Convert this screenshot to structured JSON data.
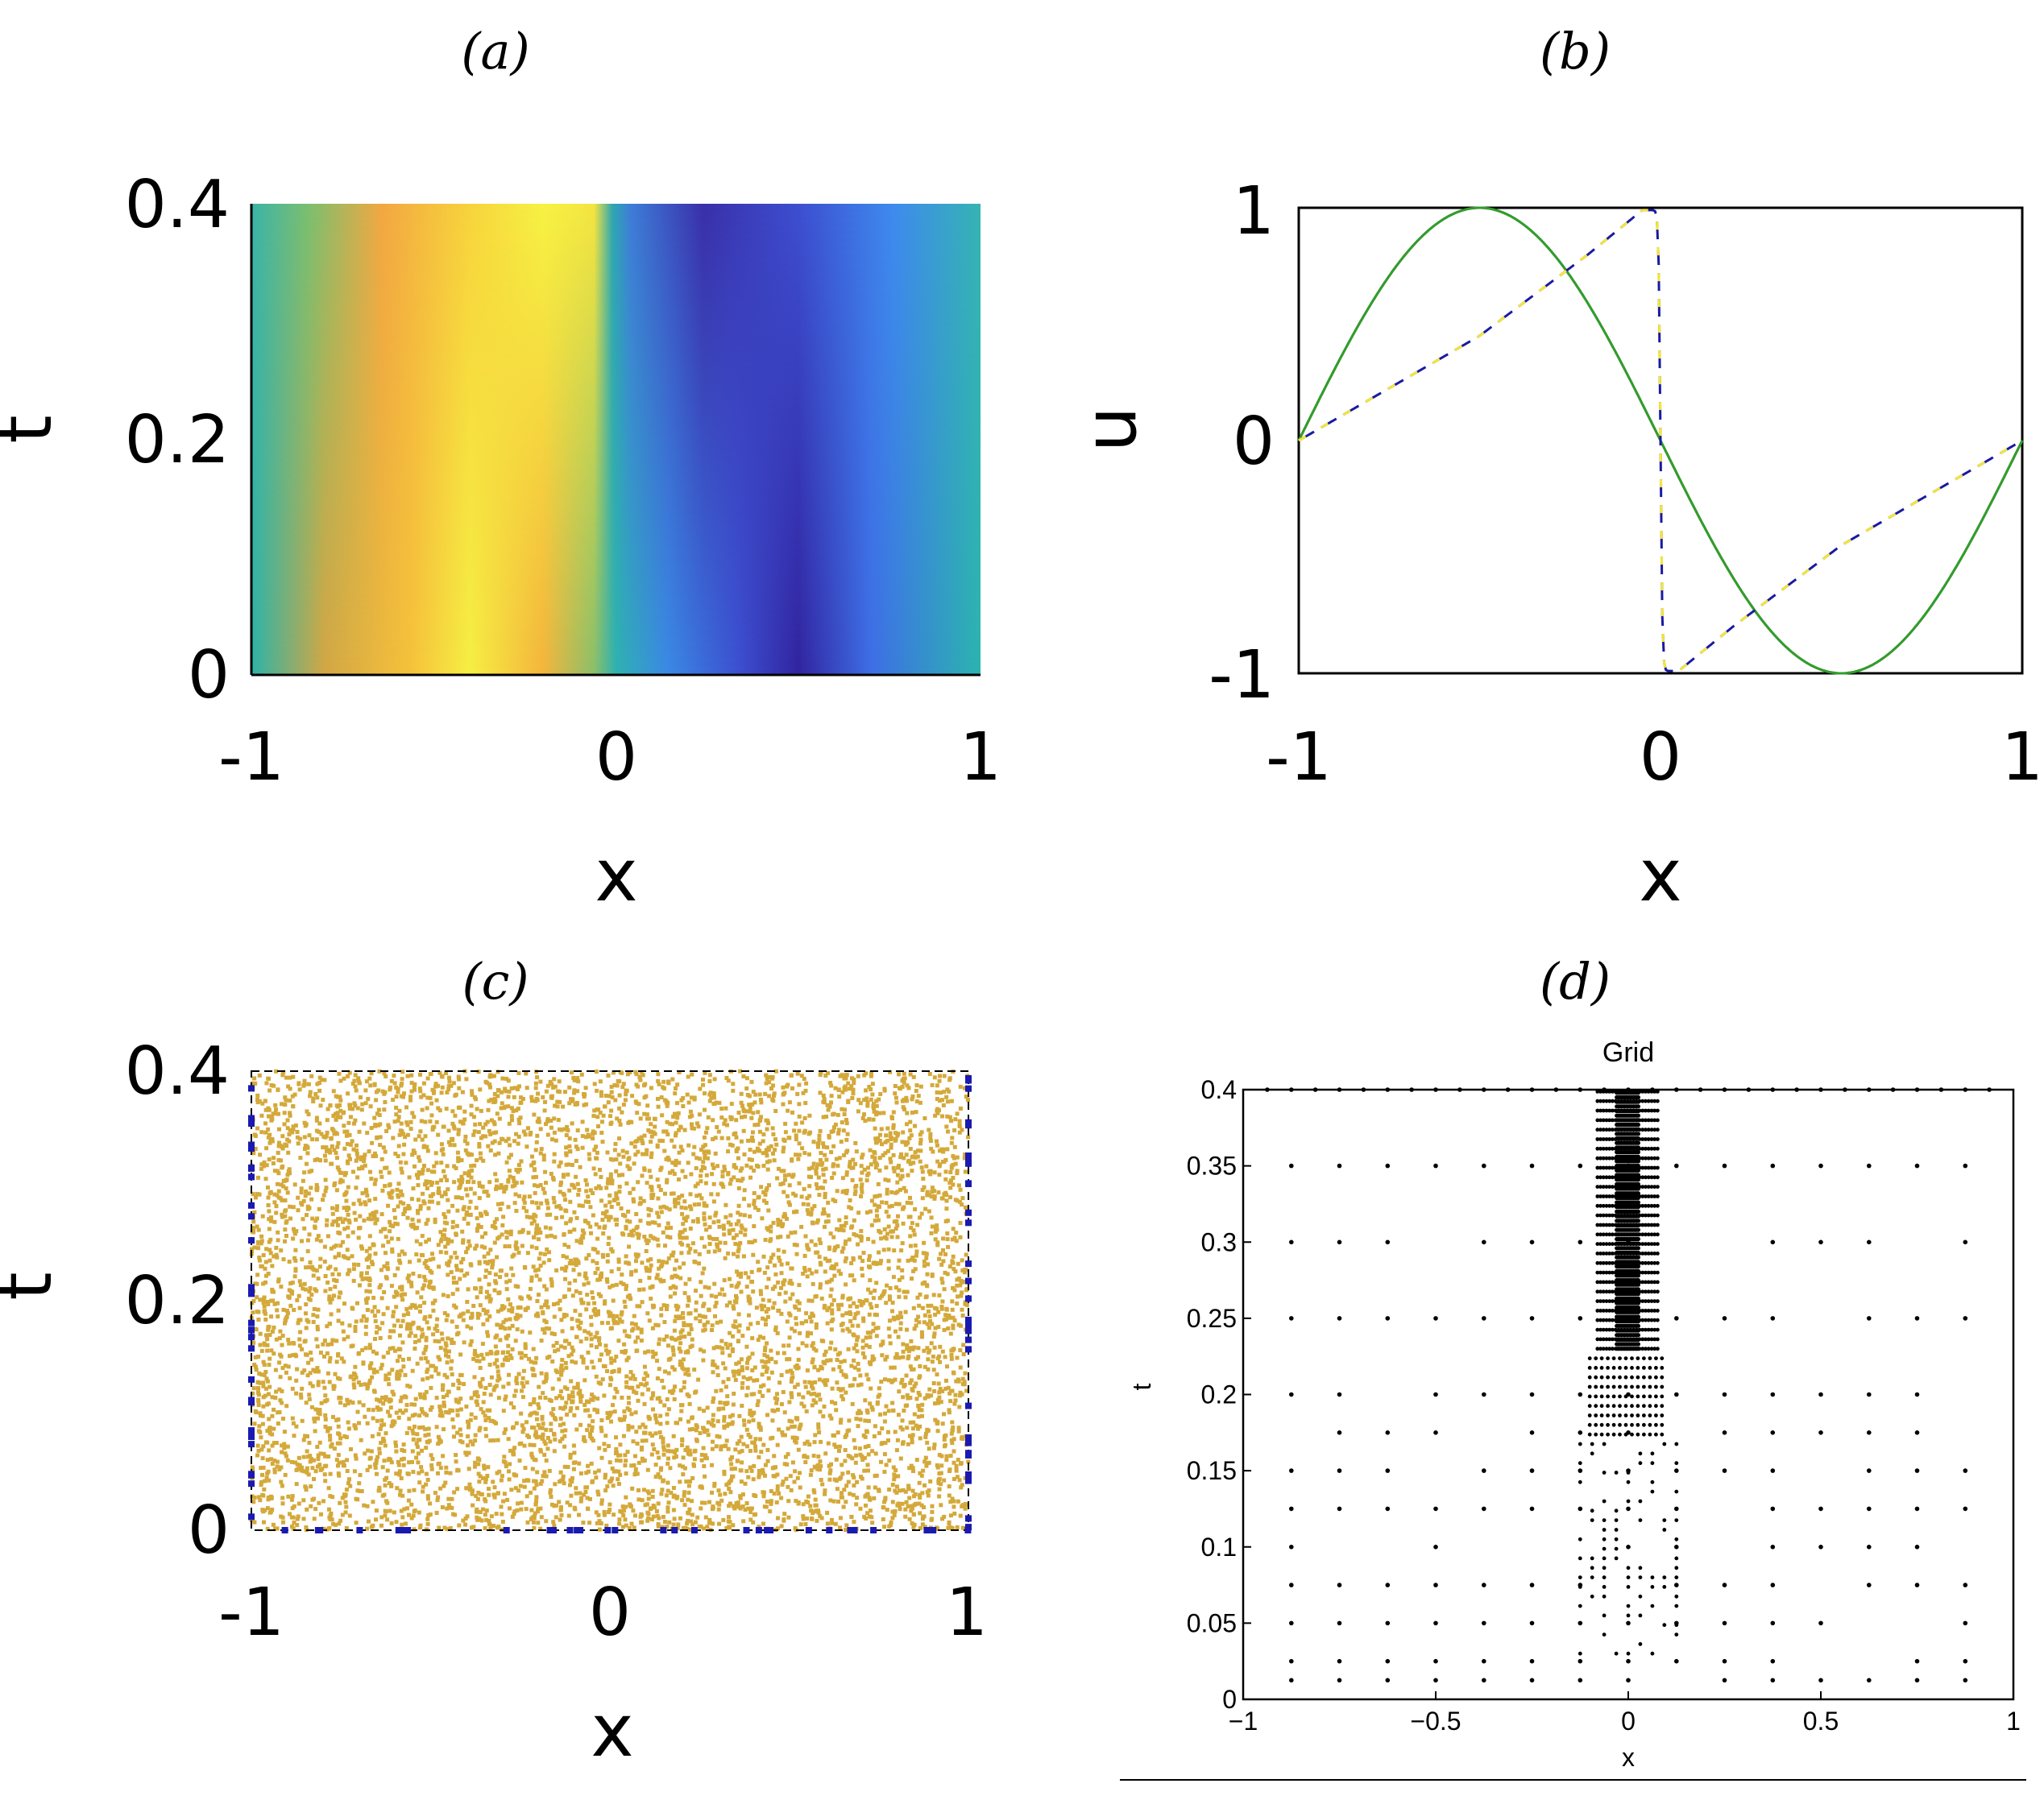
{
  "chart_data": [
    {
      "panel_label": "(a)",
      "type": "heatmap",
      "xlabel": "x",
      "ylabel": "t",
      "xlim": [
        -1,
        1
      ],
      "ylim": [
        0,
        0.4
      ],
      "xticks": [
        "-1",
        "0",
        "1"
      ],
      "yticks": [
        "0",
        "0.2",
        "0.4"
      ],
      "field": "u(x,t) solution of viscous Burgers equation with u(x,0) = -sin(pi x), shock forming at x = 0",
      "colormap": "parula",
      "value_range": [
        -1,
        1
      ]
    },
    {
      "panel_label": "(b)",
      "type": "line",
      "xlabel": "x",
      "ylabel": "u",
      "xlim": [
        -1,
        1
      ],
      "ylim": [
        -1,
        1
      ],
      "xticks": [
        "-1",
        "0",
        "1"
      ],
      "yticks": [
        "-1",
        "0",
        "1"
      ],
      "grid": false,
      "series": [
        {
          "color": "#b22222",
          "dash": "solid",
          "x": [
            -1,
            -0.75,
            -0.5,
            -0.25,
            0,
            0.25,
            0.5,
            0.75,
            1
          ],
          "y": [
            0,
            0.71,
            1,
            0.71,
            0,
            -0.71,
            -1,
            -0.71,
            0
          ]
        },
        {
          "color": "#2ca02c",
          "dash": "solid",
          "x": [
            -1,
            -0.75,
            -0.5,
            -0.25,
            0,
            0.25,
            0.5,
            0.75,
            1
          ],
          "y": [
            0,
            0.71,
            1,
            0.71,
            0,
            -0.71,
            -1,
            -0.71,
            0
          ]
        },
        {
          "color": "#1a1aa0",
          "dash": "dashed",
          "x": [
            -1,
            -0.5,
            -0.2,
            -0.05,
            0,
            0.05,
            0.2,
            0.5,
            1
          ],
          "y": [
            0,
            0.45,
            0.8,
            0.99,
            0,
            -0.99,
            -0.8,
            -0.45,
            0
          ]
        },
        {
          "color": "#f5e63a",
          "dash": "dashed",
          "x": [
            -1,
            -0.5,
            -0.2,
            -0.05,
            0,
            0.05,
            0.2,
            0.5,
            1
          ],
          "y": [
            0,
            0.45,
            0.8,
            0.99,
            0,
            -0.99,
            -0.8,
            -0.45,
            0
          ]
        }
      ]
    },
    {
      "panel_label": "(c)",
      "type": "scatter",
      "xlabel": "x",
      "ylabel": "t",
      "xlim": [
        -1,
        1
      ],
      "ylim": [
        0,
        0.4
      ],
      "xticks": [
        "-1",
        "0",
        "1"
      ],
      "yticks": [
        "0",
        "0.2",
        "0.4"
      ],
      "series": [
        {
          "color": "#d4a93a",
          "marker": "dot",
          "distribution": "uniform random over [-1,1] x [0,0.4]",
          "count": 7000
        },
        {
          "color": "#1a1ab0",
          "marker": "square",
          "distribution": "random points on boundaries x=-1, x=1 and t=0",
          "count": 90
        }
      ]
    },
    {
      "panel_label": "(d)",
      "type": "scatter",
      "title": "Grid",
      "xlabel": "x",
      "ylabel": "t",
      "xlim": [
        -1,
        1
      ],
      "ylim": [
        0,
        0.4
      ],
      "xticks": [
        "−1",
        "−0.5",
        "0",
        "0.5",
        "1"
      ],
      "yticks": [
        "0",
        "0.05",
        "0.1",
        "0.15",
        "0.2",
        "0.25",
        "0.3",
        "0.35",
        "0.4"
      ],
      "rows": [
        {
          "t": 0.0125,
          "x_spacing": 0.125
        },
        {
          "t": 0.025,
          "x_spacing": 0.125
        },
        {
          "t": 0.05,
          "x_spacing": 0.125
        },
        {
          "t": 0.075,
          "x_spacing": 0.125
        },
        {
          "t": 0.1,
          "x_spacing": 0.125
        },
        {
          "t": 0.125,
          "x_spacing": 0.125
        },
        {
          "t": 0.15,
          "x_spacing": 0.125
        },
        {
          "t": 0.175,
          "x_spacing": 0.125
        },
        {
          "t": 0.2,
          "x_spacing": 0.125
        },
        {
          "t": 0.25,
          "x_spacing": 0.125
        },
        {
          "t": 0.3,
          "x_spacing": 0.125
        },
        {
          "t": 0.35,
          "x_spacing": 0.125
        },
        {
          "t": 0.4,
          "x_spacing": 0.0625
        }
      ],
      "refinement": "dense cluster of points near x = 0 for t between 0.17 and 0.4, densest above t = 0.23"
    }
  ]
}
